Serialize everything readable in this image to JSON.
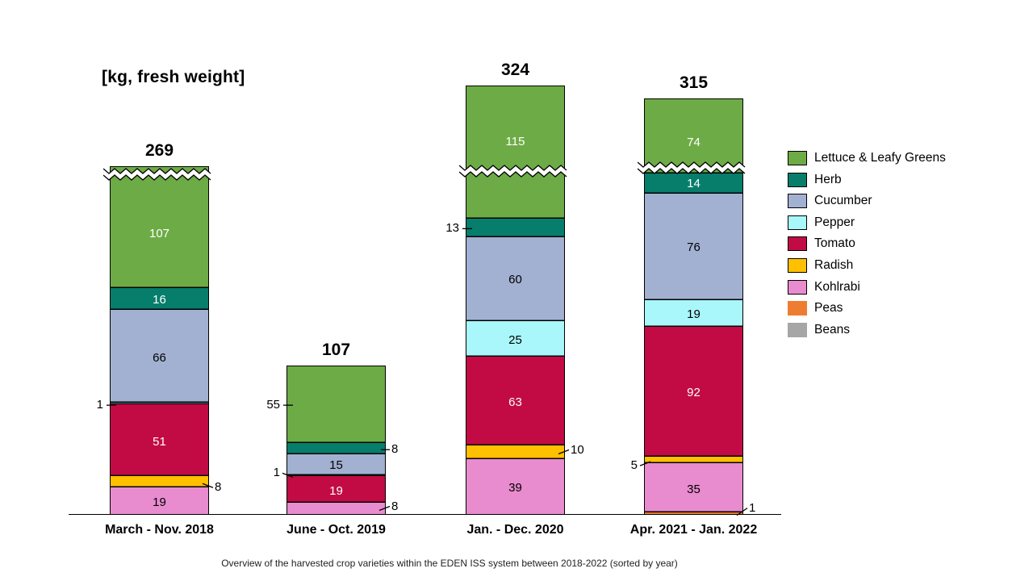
{
  "title": "[kg, fresh weight]",
  "caption": "Overview of the harvested crop varieties within the EDEN ISS system between 2018-2022 (sorted by year)",
  "chart_data": {
    "type": "bar",
    "stacked": true,
    "unit": "kg fresh weight",
    "title": "[kg, fresh weight]",
    "categories": [
      "March - Nov. 2018",
      "June - Oct. 2019",
      "Jan. - Dec. 2020",
      "Apr. 2021 - Jan. 2022"
    ],
    "totals": [
      269,
      107,
      324,
      315
    ],
    "series": [
      {
        "name": "Lettuce & Leafy Greens",
        "color": "#6DAB46",
        "text": "#ffffff",
        "legend_border": true,
        "values": [
          107,
          55,
          115,
          74
        ]
      },
      {
        "name": "Herb",
        "color": "#077D6C",
        "text": "#ffffff",
        "legend_border": true,
        "values": [
          16,
          8,
          13,
          14
        ]
      },
      {
        "name": "Cucumber",
        "color": "#A2B1D2",
        "text": "#000000",
        "legend_border": true,
        "values": [
          66,
          15,
          60,
          76
        ]
      },
      {
        "name": "Pepper",
        "color": "#A9F7FA",
        "text": "#000000",
        "legend_border": true,
        "values": [
          1,
          1,
          25,
          19
        ]
      },
      {
        "name": "Tomato",
        "color": "#C20B45",
        "text": "#ffffff",
        "legend_border": true,
        "values": [
          51,
          19,
          63,
          92
        ]
      },
      {
        "name": "Radish",
        "color": "#FFC000",
        "text": "#000000",
        "legend_border": true,
        "values": [
          8,
          0,
          10,
          5
        ]
      },
      {
        "name": "Kohlrabi",
        "color": "#E98BCF",
        "text": "#000000",
        "legend_border": true,
        "values": [
          19,
          8,
          39,
          35
        ]
      },
      {
        "name": "Peas",
        "color": "#ED7D31",
        "text": "#000000",
        "legend_border": false,
        "values": [
          0,
          0,
          0,
          1
        ]
      },
      {
        "name": "Beans",
        "color": "#A6A6A6",
        "text": "#000000",
        "legend_border": false,
        "values": [
          0,
          0,
          0,
          0
        ]
      }
    ],
    "axis_break": {
      "bars_with_break": [
        0,
        2,
        3
      ],
      "style": "white zigzag band across bar"
    },
    "callouts": [
      {
        "bar": 0,
        "series": "Pepper",
        "value": 1,
        "side": "left",
        "leader": "dash",
        "dy": 0
      },
      {
        "bar": 0,
        "series": "Radish",
        "value": 8,
        "side": "right",
        "leader": "diagonal",
        "dy": 5
      },
      {
        "bar": 1,
        "series": "Lettuce & Leafy Greens",
        "value": 55,
        "side": "left",
        "leader": "dash",
        "dy": 0
      },
      {
        "bar": 1,
        "series": "Herb",
        "value": 8,
        "side": "right",
        "leader": "dash",
        "dy": 0
      },
      {
        "bar": 1,
        "series": "Pepper",
        "value": 1,
        "side": "left",
        "leader": "diagonal",
        "dy": -5
      },
      {
        "bar": 1,
        "series": "Kohlrabi",
        "value": 8,
        "side": "right",
        "leader": "diagonal",
        "dy": -5
      },
      {
        "bar": 2,
        "series": "Herb",
        "value": 13,
        "side": "left",
        "leader": "dash",
        "dy": 0
      },
      {
        "bar": 2,
        "series": "Radish",
        "value": 10,
        "side": "right",
        "leader": "diagonal",
        "dy": -5
      },
      {
        "bar": 3,
        "series": "Radish",
        "value": 5,
        "side": "left",
        "leader": "diagonal",
        "dy": 5
      },
      {
        "bar": 3,
        "series": "Peas",
        "value": 1,
        "side": "right",
        "leader": "diagonal",
        "dy": -9
      }
    ],
    "legend_position": "right",
    "grid": false
  }
}
